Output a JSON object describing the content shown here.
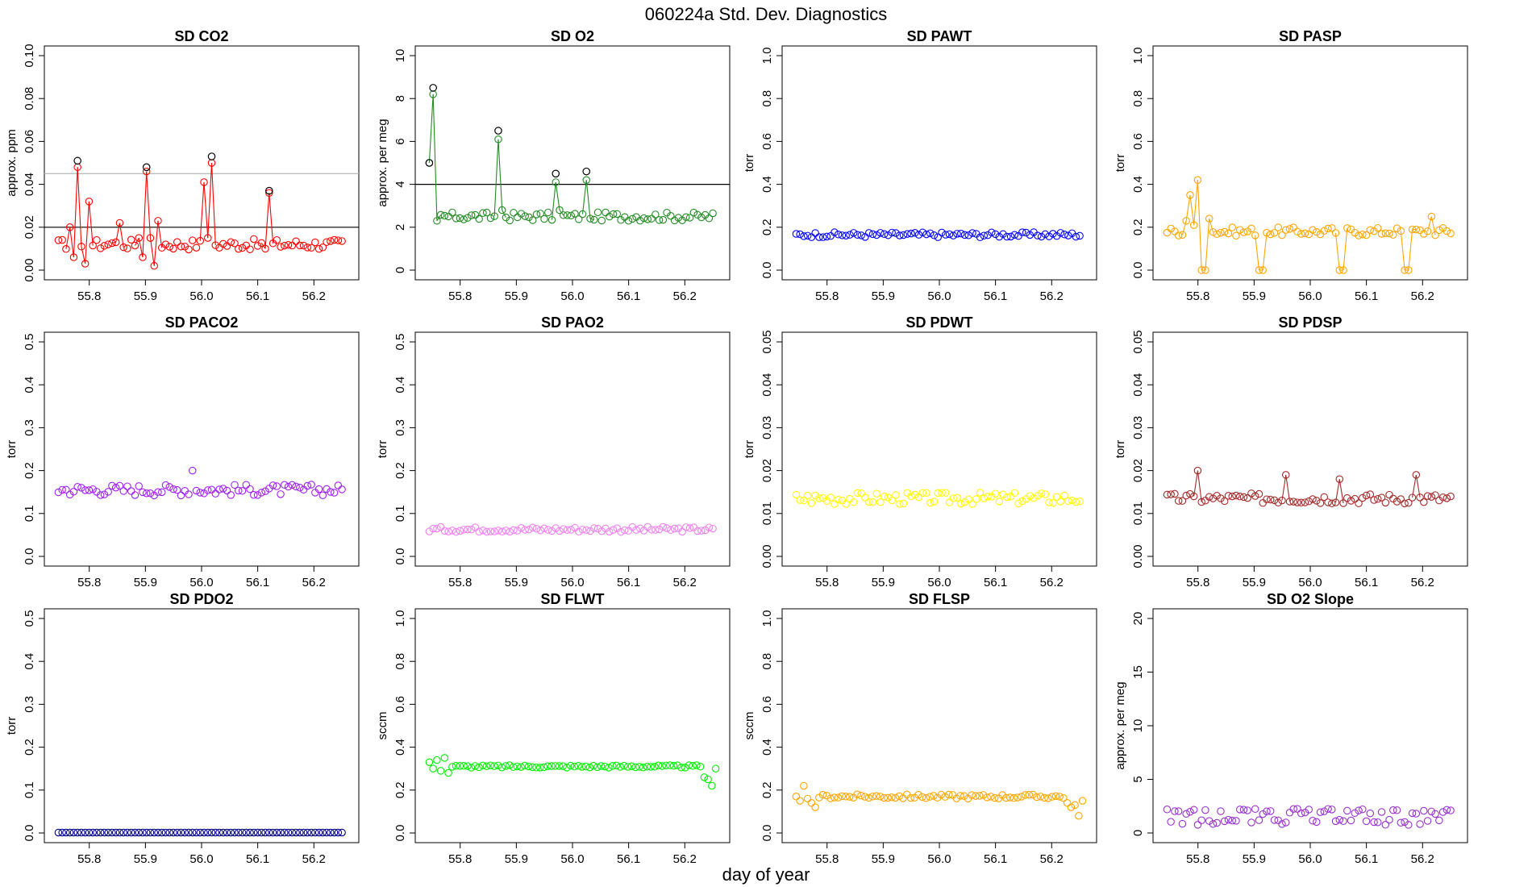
{
  "suptitle": "060224a   Std. Dev. Diagnostics",
  "xlabel": "day of year",
  "x_ticks": [
    "55.8",
    "55.9",
    "56.0",
    "56.1",
    "56.2"
  ],
  "chart_data": [
    {
      "type": "scatter",
      "title": "SD CO2",
      "ylabel": "approx. ppm",
      "color": "#ff0000",
      "ylim": [
        0,
        0.1
      ],
      "yticks": [
        "0.00",
        "0.02",
        "0.04",
        "0.06",
        "0.08",
        "0.10"
      ],
      "hlines": [
        {
          "y": 0.02,
          "color": "#000000"
        },
        {
          "y": 0.045,
          "color": "#b0b0b0"
        }
      ],
      "base": 0.012,
      "noise": 0.0025,
      "lines": true,
      "spikes": [
        [
          3,
          0.02
        ],
        [
          4,
          0.006
        ],
        [
          5,
          0.048
        ],
        [
          6,
          0.011
        ],
        [
          7,
          0.003
        ],
        [
          8,
          0.032
        ],
        [
          15,
          0.013
        ],
        [
          16,
          0.022
        ],
        [
          21,
          0.015
        ],
        [
          22,
          0.006
        ],
        [
          23,
          0.046
        ],
        [
          24,
          0.015
        ],
        [
          25,
          0.002
        ],
        [
          26,
          0.023
        ],
        [
          38,
          0.041
        ],
        [
          39,
          0.015
        ],
        [
          40,
          0.05
        ],
        [
          54,
          0.01
        ],
        [
          55,
          0.036
        ]
      ],
      "circled": [
        [
          5,
          0.051
        ],
        [
          23,
          0.048
        ],
        [
          40,
          0.053
        ],
        [
          55,
          0.037
        ]
      ],
      "count": 75,
      "x_start": 55.745,
      "x_end": 56.25
    },
    {
      "type": "scatter",
      "title": "SD O2",
      "ylabel": "approx. per meg",
      "color": "#228b22",
      "ylim": [
        0,
        10
      ],
      "yticks": [
        "0",
        "2",
        "4",
        "6",
        "8",
        "10"
      ],
      "hlines": [
        {
          "y": 4,
          "color": "#000000"
        }
      ],
      "base": 2.5,
      "noise": 0.2,
      "lines": true,
      "spikes": [
        [
          0,
          5.0
        ],
        [
          1,
          8.2
        ],
        [
          2,
          2.3
        ],
        [
          18,
          6.1
        ],
        [
          19,
          2.8
        ],
        [
          33,
          4.1
        ],
        [
          34,
          2.8
        ],
        [
          41,
          4.2
        ],
        [
          42,
          2.4
        ]
      ],
      "circled": [
        [
          0,
          5.0
        ],
        [
          1,
          8.5
        ],
        [
          18,
          6.5
        ],
        [
          33,
          4.5
        ],
        [
          41,
          4.6
        ]
      ],
      "count": 75,
      "x_start": 55.745,
      "x_end": 56.25
    },
    {
      "type": "scatter",
      "title": "SD PAWT",
      "ylabel": "torr",
      "color": "#0000ff",
      "ylim": [
        0,
        1
      ],
      "yticks": [
        "0.0",
        "0.2",
        "0.4",
        "0.6",
        "0.8",
        "1.0"
      ],
      "base": 0.165,
      "noise": 0.012,
      "count": 75,
      "x_start": 55.745,
      "x_end": 56.25
    },
    {
      "type": "scatter",
      "title": "SD PASP",
      "ylabel": "torr",
      "color": "#ffa500",
      "ylim": [
        0,
        1
      ],
      "yticks": [
        "0.0",
        "0.2",
        "0.4",
        "0.6",
        "0.8",
        "1.0"
      ],
      "base": 0.18,
      "noise": 0.02,
      "lines": true,
      "spikes": [
        [
          5,
          0.23
        ],
        [
          6,
          0.35
        ],
        [
          7,
          0.21
        ],
        [
          8,
          0.42
        ],
        [
          9,
          0.0
        ],
        [
          10,
          0.0
        ],
        [
          11,
          0.24
        ],
        [
          24,
          0.0
        ],
        [
          25,
          0.0
        ],
        [
          45,
          0.0
        ],
        [
          46,
          0.0
        ],
        [
          62,
          0.0
        ],
        [
          63,
          0.0
        ],
        [
          64,
          0.19
        ],
        [
          69,
          0.25
        ]
      ],
      "count": 75,
      "x_start": 55.745,
      "x_end": 56.25
    },
    {
      "type": "scatter",
      "title": "SD PACO2",
      "ylabel": "torr",
      "color": "#a020f0",
      "ylim": [
        0,
        0.5
      ],
      "yticks": [
        "0.0",
        "0.1",
        "0.2",
        "0.3",
        "0.4",
        "0.5"
      ],
      "base": 0.155,
      "noise": 0.013,
      "spikes": [
        [
          35,
          0.2
        ]
      ],
      "count": 75,
      "x_start": 55.745,
      "x_end": 56.25
    },
    {
      "type": "scatter",
      "title": "SD PAO2",
      "ylabel": "torr",
      "color": "#ee82ee",
      "ylim": [
        0,
        0.5
      ],
      "yticks": [
        "0.0",
        "0.1",
        "0.2",
        "0.3",
        "0.4",
        "0.5"
      ],
      "base": 0.063,
      "noise": 0.006,
      "count": 75,
      "x_start": 55.745,
      "x_end": 56.25
    },
    {
      "type": "scatter",
      "title": "SD PDWT",
      "ylabel": "torr",
      "color": "#ffff00",
      "ylim": [
        0,
        0.05
      ],
      "yticks": [
        "0.00",
        "0.01",
        "0.02",
        "0.03",
        "0.04",
        "0.05"
      ],
      "base": 0.0135,
      "noise": 0.0014,
      "count": 75,
      "x_start": 55.745,
      "x_end": 56.25
    },
    {
      "type": "scatter",
      "title": "SD PDSP",
      "ylabel": "torr",
      "color": "#a52a2a",
      "ylim": [
        0,
        0.05
      ],
      "yticks": [
        "0.00",
        "0.01",
        "0.02",
        "0.03",
        "0.04",
        "0.05"
      ],
      "base": 0.0135,
      "noise": 0.0012,
      "lines": true,
      "spikes": [
        [
          8,
          0.02
        ],
        [
          31,
          0.019
        ],
        [
          45,
          0.018
        ],
        [
          65,
          0.019
        ]
      ],
      "count": 75,
      "x_start": 55.745,
      "x_end": 56.25
    },
    {
      "type": "scatter",
      "title": "SD PDO2",
      "ylabel": "torr",
      "color": "#00008b",
      "ylim": [
        0,
        0.5
      ],
      "yticks": [
        "0.0",
        "0.1",
        "0.2",
        "0.3",
        "0.4",
        "0.5"
      ],
      "base": 0.001,
      "noise": 0.0,
      "count": 75,
      "x_start": 55.745,
      "x_end": 56.25
    },
    {
      "type": "scatter",
      "title": "SD FLWT",
      "ylabel": "sccm",
      "color": "#00ee00",
      "ylim": [
        0,
        1
      ],
      "yticks": [
        "0.0",
        "0.2",
        "0.4",
        "0.6",
        "0.8",
        "1.0"
      ],
      "base": 0.31,
      "noise": 0.006,
      "spikes": [
        [
          0,
          0.33
        ],
        [
          1,
          0.3
        ],
        [
          2,
          0.34
        ],
        [
          3,
          0.29
        ],
        [
          4,
          0.35
        ],
        [
          5,
          0.28
        ],
        [
          72,
          0.26
        ],
        [
          73,
          0.25
        ],
        [
          74,
          0.22
        ],
        [
          75,
          0.3
        ]
      ],
      "count": 76,
      "x_start": 55.745,
      "x_end": 56.255
    },
    {
      "type": "scatter",
      "title": "SD FLSP",
      "ylabel": "sccm",
      "color": "#ffa500",
      "ylim": [
        0,
        1
      ],
      "yticks": [
        "0.0",
        "0.2",
        "0.4",
        "0.6",
        "0.8",
        "1.0"
      ],
      "base": 0.17,
      "noise": 0.01,
      "spikes": [
        [
          0,
          0.17
        ],
        [
          1,
          0.15
        ],
        [
          2,
          0.22
        ],
        [
          3,
          0.16
        ],
        [
          4,
          0.14
        ],
        [
          5,
          0.12
        ],
        [
          71,
          0.14
        ],
        [
          72,
          0.12
        ],
        [
          73,
          0.13
        ],
        [
          74,
          0.08
        ],
        [
          75,
          0.15
        ]
      ],
      "count": 76,
      "x_start": 55.745,
      "x_end": 56.255
    },
    {
      "type": "scatter",
      "title": "SD O2 Slope",
      "ylabel": "approx. per meg",
      "color": "#9932cc",
      "ylim": [
        0,
        20
      ],
      "yticks": [
        "0",
        "5",
        "10",
        "15",
        "20"
      ],
      "base": 1.5,
      "noise": 0.5,
      "bimodal": true,
      "count": 75,
      "x_start": 55.745,
      "x_end": 56.25
    }
  ]
}
